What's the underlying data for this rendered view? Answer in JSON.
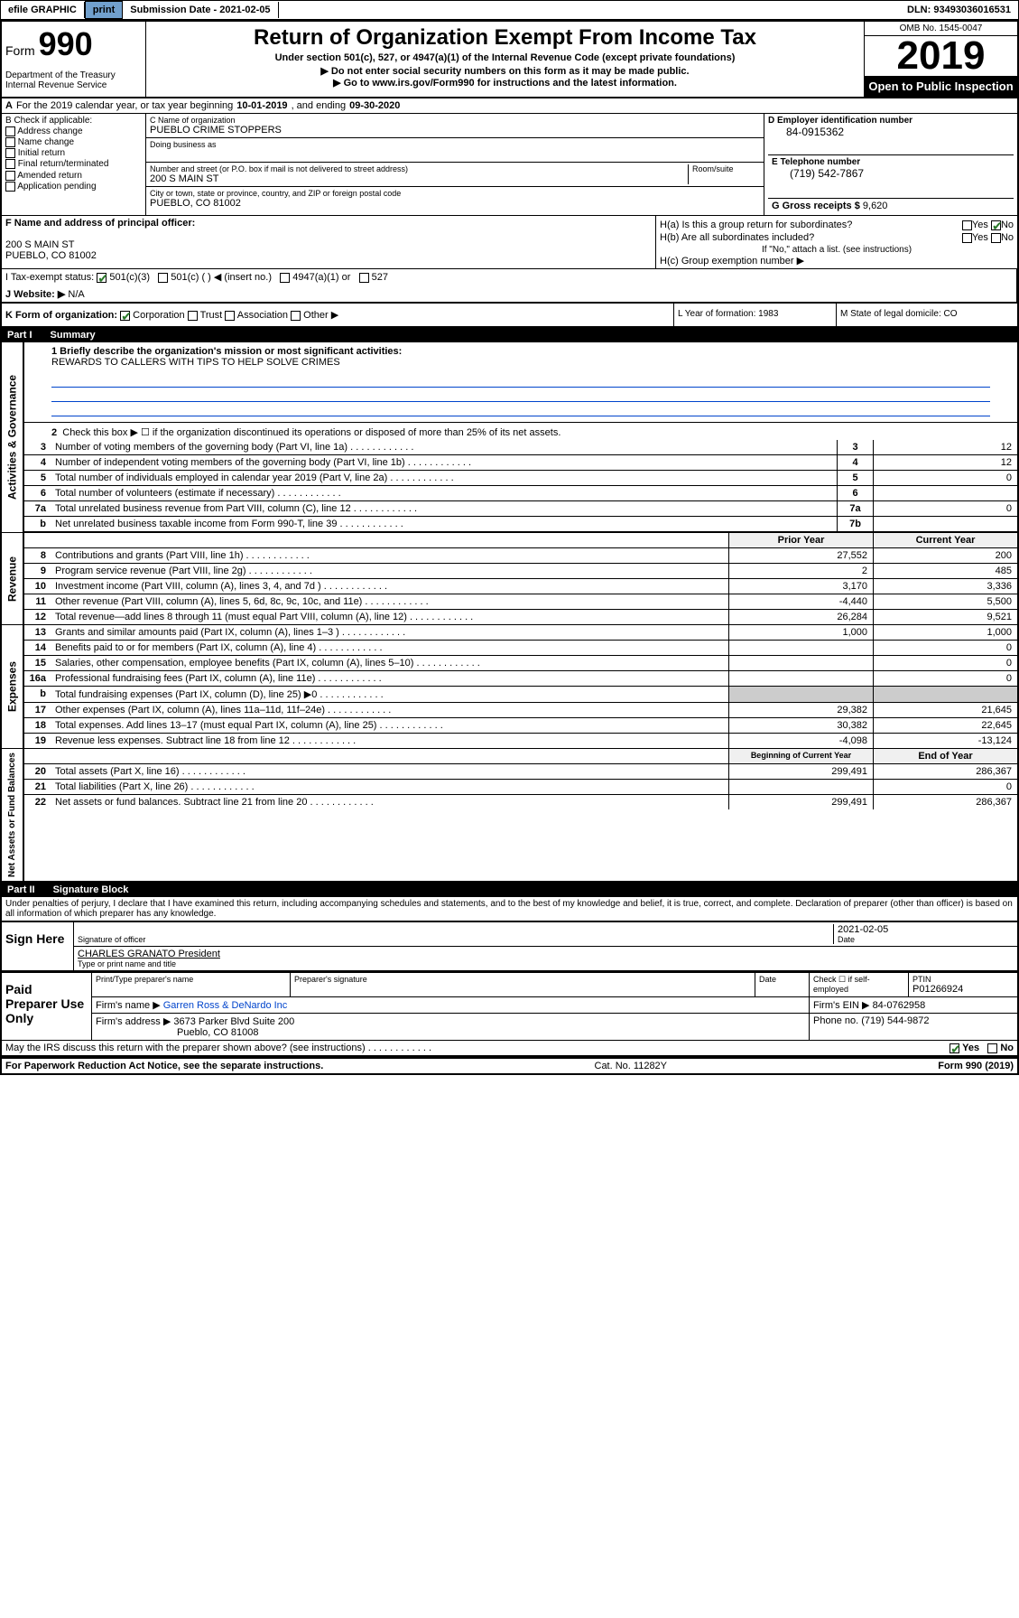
{
  "topbar": {
    "efile": "efile GRAPHIC",
    "print": "print",
    "subdate_label": "Submission Date - ",
    "subdate": "2021-02-05",
    "dln": "DLN: 93493036016531"
  },
  "header": {
    "form": "Form",
    "form_num": "990",
    "dept": "Department of the Treasury\nInternal Revenue Service",
    "title": "Return of Organization Exempt From Income Tax",
    "sub": "Under section 501(c), 527, or 4947(a)(1) of the Internal Revenue Code (except private foundations)",
    "nossn": "▶ Do not enter social security numbers on this form as it may be made public.",
    "goto": "▶ Go to www.irs.gov/Form990 for instructions and the latest information.",
    "omb": "OMB No. 1545-0047",
    "year": "2019",
    "open": "Open to Public Inspection"
  },
  "rowA": {
    "label": "A",
    "text": "For the 2019 calendar year, or tax year beginning ",
    "begin": "10-01-2019",
    "mid": ", and ending ",
    "end": "09-30-2020"
  },
  "colB": {
    "label": "B Check if applicable:",
    "opts": [
      "Address change",
      "Name change",
      "Initial return",
      "Final return/terminated",
      "Amended return",
      "Application pending"
    ]
  },
  "colC": {
    "name_label": "C Name of organization",
    "name": "PUEBLO CRIME STOPPERS",
    "dba": "Doing business as",
    "addr_label": "Number and street (or P.O. box if mail is not delivered to street address)",
    "addr": "200 S MAIN ST",
    "room": "Room/suite",
    "city_label": "City or town, state or province, country, and ZIP or foreign postal code",
    "city": "PUEBLO, CO  81002"
  },
  "colD": {
    "label": "D Employer identification number",
    "ein": "84-0915362",
    "tel_label": "E Telephone number",
    "tel": "(719) 542-7867",
    "gross_label": "G Gross receipts $",
    "gross": "9,620"
  },
  "colF": {
    "label": "F Name and address of principal officer:",
    "addr1": "200 S MAIN ST",
    "addr2": "PUEBLO, CO  81002"
  },
  "colH": {
    "ha": "H(a)  Is this a group return for subordinates?",
    "hb": "H(b)  Are all subordinates included?",
    "hb_note": "If \"No,\" attach a list. (see instructions)",
    "hc": "H(c)  Group exemption number ▶",
    "yes": "Yes",
    "no": "No"
  },
  "rowI": {
    "label": "I   Tax-exempt status:",
    "c3": "501(c)(3)",
    "c": "501(c) (   )",
    "insert": "◀ (insert no.)",
    "a1": "4947(a)(1) or",
    "s527": "527"
  },
  "rowJ": {
    "label": "J   Website: ▶",
    "val": "N/A"
  },
  "rowK": {
    "label": "K Form of organization:",
    "corp": "Corporation",
    "trust": "Trust",
    "assoc": "Association",
    "other": "Other ▶"
  },
  "colL": {
    "text": "L Year of formation: 1983"
  },
  "colM": {
    "text": "M State of legal domicile: CO"
  },
  "part1": {
    "num": "Part I",
    "title": "Summary"
  },
  "summary": {
    "q1": "1  Briefly describe the organization's mission or most significant activities:",
    "mission": "REWARDS TO CALLERS WITH TIPS TO HELP SOLVE CRIMES",
    "q2": "Check this box ▶ ☐  if the organization discontinued its operations or disposed of more than 25% of its net assets.",
    "lines": [
      {
        "n": "3",
        "d": "Number of voting members of the governing body (Part VI, line 1a)",
        "box": "3",
        "v": "12"
      },
      {
        "n": "4",
        "d": "Number of independent voting members of the governing body (Part VI, line 1b)",
        "box": "4",
        "v": "12"
      },
      {
        "n": "5",
        "d": "Total number of individuals employed in calendar year 2019 (Part V, line 2a)",
        "box": "5",
        "v": "0"
      },
      {
        "n": "6",
        "d": "Total number of volunteers (estimate if necessary)",
        "box": "6",
        "v": ""
      },
      {
        "n": "7a",
        "d": "Total unrelated business revenue from Part VIII, column (C), line 12",
        "box": "7a",
        "v": "0"
      },
      {
        "n": "b",
        "d": "Net unrelated business taxable income from Form 990-T, line 39",
        "box": "7b",
        "v": ""
      }
    ],
    "prior_hdr": "Prior Year",
    "curr_hdr": "Current Year",
    "rev": [
      {
        "n": "8",
        "d": "Contributions and grants (Part VIII, line 1h)",
        "p": "27,552",
        "c": "200"
      },
      {
        "n": "9",
        "d": "Program service revenue (Part VIII, line 2g)",
        "p": "2",
        "c": "485"
      },
      {
        "n": "10",
        "d": "Investment income (Part VIII, column (A), lines 3, 4, and 7d )",
        "p": "3,170",
        "c": "3,336"
      },
      {
        "n": "11",
        "d": "Other revenue (Part VIII, column (A), lines 5, 6d, 8c, 9c, 10c, and 11e)",
        "p": "-4,440",
        "c": "5,500"
      },
      {
        "n": "12",
        "d": "Total revenue—add lines 8 through 11 (must equal Part VIII, column (A), line 12)",
        "p": "26,284",
        "c": "9,521"
      }
    ],
    "exp": [
      {
        "n": "13",
        "d": "Grants and similar amounts paid (Part IX, column (A), lines 1–3 )",
        "p": "1,000",
        "c": "1,000"
      },
      {
        "n": "14",
        "d": "Benefits paid to or for members (Part IX, column (A), line 4)",
        "p": "",
        "c": "0"
      },
      {
        "n": "15",
        "d": "Salaries, other compensation, employee benefits (Part IX, column (A), lines 5–10)",
        "p": "",
        "c": "0"
      },
      {
        "n": "16a",
        "d": "Professional fundraising fees (Part IX, column (A), line 11e)",
        "p": "",
        "c": "0"
      },
      {
        "n": "b",
        "d": "Total fundraising expenses (Part IX, column (D), line 25) ▶0",
        "p": "gray",
        "c": "gray"
      },
      {
        "n": "17",
        "d": "Other expenses (Part IX, column (A), lines 11a–11d, 11f–24e)",
        "p": "29,382",
        "c": "21,645"
      },
      {
        "n": "18",
        "d": "Total expenses. Add lines 13–17 (must equal Part IX, column (A), line 25)",
        "p": "30,382",
        "c": "22,645"
      },
      {
        "n": "19",
        "d": "Revenue less expenses. Subtract line 18 from line 12",
        "p": "-4,098",
        "c": "-13,124"
      }
    ],
    "bal_hdr1": "Beginning of Current Year",
    "bal_hdr2": "End of Year",
    "bal": [
      {
        "n": "20",
        "d": "Total assets (Part X, line 16)",
        "p": "299,491",
        "c": "286,367"
      },
      {
        "n": "21",
        "d": "Total liabilities (Part X, line 26)",
        "p": "",
        "c": "0"
      },
      {
        "n": "22",
        "d": "Net assets or fund balances. Subtract line 21 from line 20",
        "p": "299,491",
        "c": "286,367"
      }
    ],
    "tabs": [
      "Activities & Governance",
      "Revenue",
      "Expenses",
      "Net Assets or Fund Balances"
    ]
  },
  "part2": {
    "num": "Part II",
    "title": "Signature Block"
  },
  "penalty": "Under penalties of perjury, I declare that I have examined this return, including accompanying schedules and statements, and to the best of my knowledge and belief, it is true, correct, and complete. Declaration of preparer (other than officer) is based on all information of which preparer has any knowledge.",
  "sign": {
    "label": "Sign Here",
    "sig_of": "Signature of officer",
    "date": "2021-02-05",
    "date_lbl": "Date",
    "name": "CHARLES GRANATO President",
    "name_lbl": "Type or print name and title"
  },
  "prep": {
    "label": "Paid Preparer Use Only",
    "col1": "Print/Type preparer's name",
    "col2": "Preparer's signature",
    "col3": "Date",
    "col4": "Check ☐ if self-employed",
    "col5_lbl": "PTIN",
    "ptin": "P01266924",
    "firm_lbl": "Firm's name    ▶",
    "firm": "Garren Ross & DeNardo Inc",
    "ein_lbl": "Firm's EIN ▶",
    "ein": "84-0762958",
    "addr_lbl": "Firm's address ▶",
    "addr1": "3673 Parker Blvd Suite 200",
    "addr2": "Pueblo, CO  81008",
    "phone_lbl": "Phone no.",
    "phone": "(719) 544-9872"
  },
  "discuss": "May the IRS discuss this return with the preparer shown above? (see instructions)",
  "footer": {
    "left": "For Paperwork Reduction Act Notice, see the separate instructions.",
    "mid": "Cat. No. 11282Y",
    "right": "Form 990 (2019)"
  }
}
